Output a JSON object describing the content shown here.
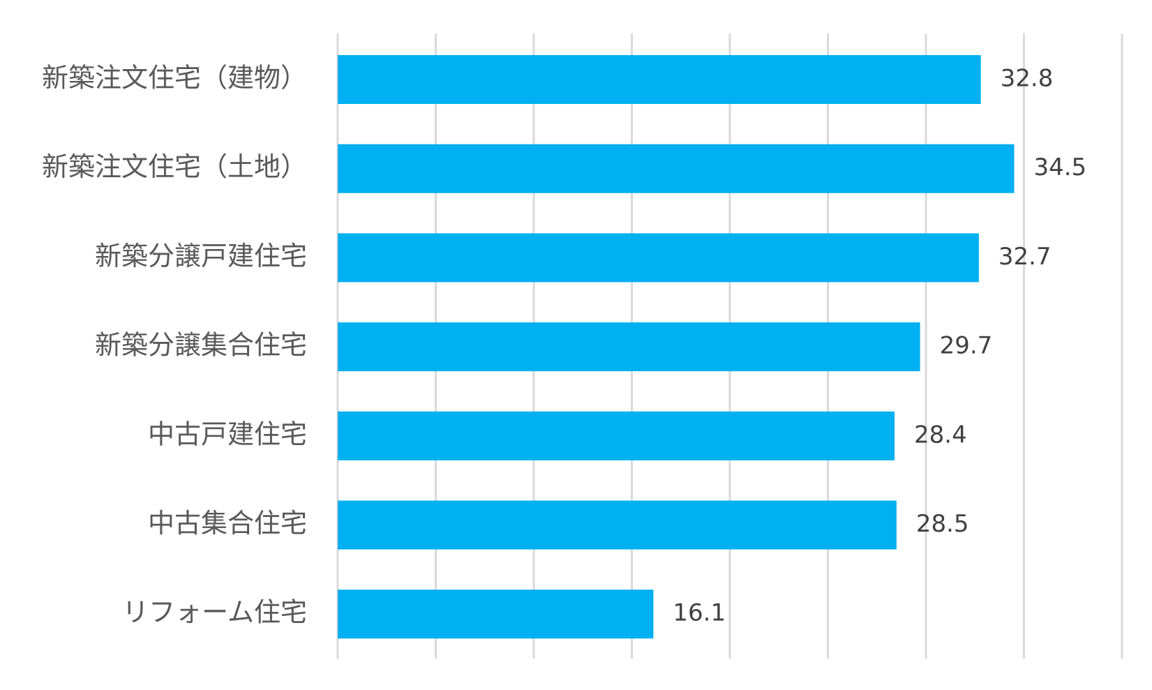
{
  "chart_data": {
    "type": "bar",
    "orientation": "horizontal",
    "categories": [
      "新築注文住宅（建物）",
      "新築注文住宅（土地）",
      "新築分譲戸建住宅",
      "新築分譲集合住宅",
      "中古戸建住宅",
      "中古集合住宅",
      "リフォーム住宅"
    ],
    "values": [
      32.8,
      34.5,
      32.7,
      29.7,
      28.4,
      28.5,
      16.1
    ],
    "title": "",
    "xlabel": "",
    "ylabel": "",
    "xlim": [
      0,
      40
    ],
    "grid": true,
    "data_labels": true,
    "legend": false,
    "bar_color": "#00b0f0"
  }
}
